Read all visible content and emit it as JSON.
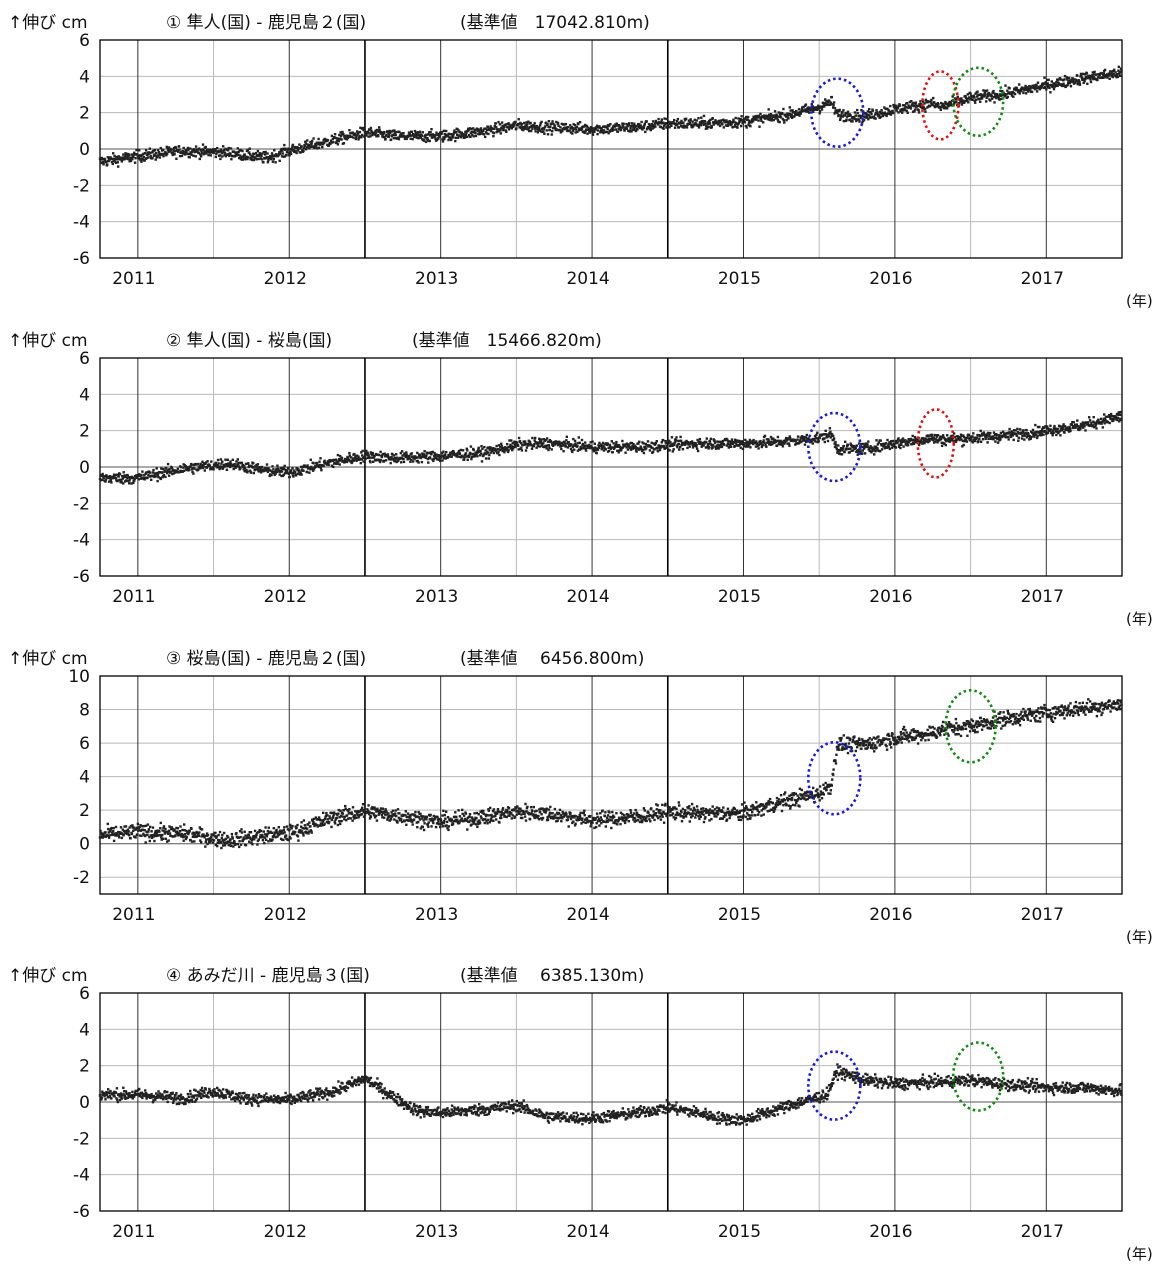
{
  "unit_label": "↑伸び cm",
  "year_unit": "(年)",
  "colors": {
    "points": "#222222",
    "blue": "#1a1ad6",
    "red": "#e01010",
    "green": "#138a13",
    "grid": "#b9b9b9",
    "axis": "#000000"
  },
  "chart_data": [
    {
      "type": "scatter",
      "title": "① 隼人(国) - 鹿児島２(国)",
      "reference": "(基準値　17042.810m)",
      "xlabel": "(年)",
      "ylabel": "↑伸び cm",
      "xlim": [
        2010.75,
        2017.5
      ],
      "ylim": [
        -6,
        6
      ],
      "yticks": [
        -6,
        -4,
        -2,
        0,
        2,
        4,
        6
      ],
      "xticks": [
        "2011",
        "2012",
        "2013",
        "2014",
        "2015",
        "2016",
        "2017"
      ],
      "grid": true,
      "series": [
        {
          "values": [
            [
              2010.75,
              -0.7
            ],
            [
              2011.0,
              -0.4
            ],
            [
              2011.3,
              -0.1
            ],
            [
              2011.6,
              -0.2
            ],
            [
              2011.85,
              -0.5
            ],
            [
              2012.0,
              -0.1
            ],
            [
              2012.3,
              0.5
            ],
            [
              2012.5,
              0.9
            ],
            [
              2012.7,
              0.7
            ],
            [
              2013.0,
              0.7
            ],
            [
              2013.3,
              1.0
            ],
            [
              2013.5,
              1.3
            ],
            [
              2013.7,
              1.2
            ],
            [
              2014.0,
              1.1
            ],
            [
              2014.3,
              1.2
            ],
            [
              2014.5,
              1.4
            ],
            [
              2014.7,
              1.4
            ],
            [
              2015.0,
              1.5
            ],
            [
              2015.3,
              1.9
            ],
            [
              2015.5,
              2.3
            ],
            [
              2015.58,
              2.6
            ],
            [
              2015.62,
              1.9
            ],
            [
              2015.8,
              1.8
            ],
            [
              2016.0,
              2.2
            ],
            [
              2016.25,
              2.5
            ],
            [
              2016.3,
              2.3
            ],
            [
              2016.5,
              2.8
            ],
            [
              2016.7,
              3.0
            ],
            [
              2017.0,
              3.5
            ],
            [
              2017.25,
              3.9
            ],
            [
              2017.5,
              4.2
            ]
          ]
        }
      ],
      "annotations": [
        {
          "shape": "ellipse",
          "color": "blue",
          "cx": 2015.62,
          "cy": 2.0
        },
        {
          "shape": "ellipse",
          "color": "red",
          "cx": 2016.3,
          "cy": 2.4
        },
        {
          "shape": "ellipse",
          "color": "green",
          "cx": 2016.55,
          "cy": 2.6
        }
      ]
    },
    {
      "type": "scatter",
      "title": "② 隼人(国) - 桜島(国)",
      "reference": "(基準値　15466.820m)",
      "xlabel": "(年)",
      "ylabel": "↑伸び cm",
      "xlim": [
        2010.75,
        2017.5
      ],
      "ylim": [
        -6,
        6
      ],
      "yticks": [
        -6,
        -4,
        -2,
        0,
        2,
        4,
        6
      ],
      "xticks": [
        "2011",
        "2012",
        "2013",
        "2014",
        "2015",
        "2016",
        "2017"
      ],
      "grid": true,
      "series": [
        {
          "values": [
            [
              2010.75,
              -0.6
            ],
            [
              2011.0,
              -0.6
            ],
            [
              2011.3,
              -0.1
            ],
            [
              2011.6,
              0.2
            ],
            [
              2011.85,
              -0.2
            ],
            [
              2012.0,
              -0.3
            ],
            [
              2012.3,
              0.3
            ],
            [
              2012.5,
              0.6
            ],
            [
              2012.7,
              0.5
            ],
            [
              2013.0,
              0.6
            ],
            [
              2013.3,
              0.8
            ],
            [
              2013.5,
              1.2
            ],
            [
              2013.7,
              1.3
            ],
            [
              2014.0,
              1.1
            ],
            [
              2014.3,
              1.1
            ],
            [
              2014.5,
              1.2
            ],
            [
              2014.7,
              1.3
            ],
            [
              2015.0,
              1.3
            ],
            [
              2015.3,
              1.4
            ],
            [
              2015.5,
              1.6
            ],
            [
              2015.58,
              1.8
            ],
            [
              2015.62,
              1.0
            ],
            [
              2015.8,
              1.0
            ],
            [
              2016.0,
              1.3
            ],
            [
              2016.25,
              1.6
            ],
            [
              2016.3,
              1.5
            ],
            [
              2016.5,
              1.6
            ],
            [
              2016.7,
              1.7
            ],
            [
              2017.0,
              2.0
            ],
            [
              2017.25,
              2.3
            ],
            [
              2017.5,
              2.8
            ]
          ]
        }
      ],
      "annotations": [
        {
          "shape": "ellipse",
          "color": "blue",
          "cx": 2015.6,
          "cy": 1.1
        },
        {
          "shape": "ellipse",
          "color": "red",
          "cx": 2016.27,
          "cy": 1.3
        }
      ]
    },
    {
      "type": "scatter",
      "title": "③ 桜島(国) - 鹿児島２(国)",
      "reference": "(基準値　 6456.800m)",
      "xlabel": "(年)",
      "ylabel": "↑伸び cm",
      "xlim": [
        2010.75,
        2017.5
      ],
      "ylim": [
        -3,
        10
      ],
      "yticks": [
        -2,
        0,
        2,
        4,
        6,
        8,
        10
      ],
      "xticks": [
        "2011",
        "2012",
        "2013",
        "2014",
        "2015",
        "2016",
        "2017"
      ],
      "grid": true,
      "series": [
        {
          "values": [
            [
              2010.75,
              0.5
            ],
            [
              2011.0,
              0.7
            ],
            [
              2011.3,
              0.6
            ],
            [
              2011.6,
              0.2
            ],
            [
              2011.85,
              0.5
            ],
            [
              2012.0,
              0.6
            ],
            [
              2012.3,
              1.6
            ],
            [
              2012.5,
              1.9
            ],
            [
              2012.7,
              1.7
            ],
            [
              2013.0,
              1.3
            ],
            [
              2013.3,
              1.6
            ],
            [
              2013.5,
              1.9
            ],
            [
              2013.7,
              1.8
            ],
            [
              2014.0,
              1.4
            ],
            [
              2014.3,
              1.6
            ],
            [
              2014.5,
              1.9
            ],
            [
              2014.7,
              1.8
            ],
            [
              2015.0,
              1.8
            ],
            [
              2015.3,
              2.6
            ],
            [
              2015.5,
              3.0
            ],
            [
              2015.58,
              3.5
            ],
            [
              2015.62,
              5.9
            ],
            [
              2015.8,
              5.9
            ],
            [
              2016.0,
              6.3
            ],
            [
              2016.25,
              6.6
            ],
            [
              2016.3,
              6.8
            ],
            [
              2016.5,
              7.0
            ],
            [
              2016.7,
              7.4
            ],
            [
              2017.0,
              7.8
            ],
            [
              2017.25,
              8.1
            ],
            [
              2017.5,
              8.3
            ]
          ]
        }
      ],
      "annotations": [
        {
          "shape": "ellipse",
          "color": "blue",
          "cx": 2015.6,
          "cy": 3.9
        },
        {
          "shape": "ellipse",
          "color": "green",
          "cx": 2016.5,
          "cy": 7.0
        }
      ]
    },
    {
      "type": "scatter",
      "title": "④ あみだ川 - 鹿児島３(国)",
      "reference": "(基準値　 6385.130m)",
      "xlabel": "(年)",
      "ylabel": "↑伸び cm",
      "xlim": [
        2010.75,
        2017.5
      ],
      "ylim": [
        -6,
        6
      ],
      "yticks": [
        -6,
        -4,
        -2,
        0,
        2,
        4,
        6
      ],
      "xticks": [
        "2011",
        "2012",
        "2013",
        "2014",
        "2015",
        "2016",
        "2017"
      ],
      "grid": true,
      "series": [
        {
          "values": [
            [
              2010.75,
              0.4
            ],
            [
              2011.0,
              0.4
            ],
            [
              2011.3,
              0.2
            ],
            [
              2011.5,
              0.6
            ],
            [
              2011.7,
              0.2
            ],
            [
              2012.0,
              0.1
            ],
            [
              2012.3,
              0.6
            ],
            [
              2012.5,
              1.3
            ],
            [
              2012.7,
              0.2
            ],
            [
              2012.85,
              -0.5
            ],
            [
              2013.0,
              -0.6
            ],
            [
              2013.3,
              -0.4
            ],
            [
              2013.5,
              -0.2
            ],
            [
              2013.7,
              -0.8
            ],
            [
              2014.0,
              -0.9
            ],
            [
              2014.3,
              -0.6
            ],
            [
              2014.5,
              -0.3
            ],
            [
              2014.7,
              -0.6
            ],
            [
              2014.85,
              -0.9
            ],
            [
              2015.0,
              -1.0
            ],
            [
              2015.3,
              -0.2
            ],
            [
              2015.55,
              0.4
            ],
            [
              2015.62,
              1.7
            ],
            [
              2015.8,
              1.2
            ],
            [
              2016.0,
              1.0
            ],
            [
              2016.3,
              1.1
            ],
            [
              2016.5,
              1.2
            ],
            [
              2016.7,
              1.0
            ],
            [
              2017.0,
              0.8
            ],
            [
              2017.25,
              0.8
            ],
            [
              2017.5,
              0.6
            ]
          ]
        }
      ],
      "annotations": [
        {
          "shape": "ellipse",
          "color": "blue",
          "cx": 2015.6,
          "cy": 0.9
        },
        {
          "shape": "ellipse",
          "color": "green",
          "cx": 2016.55,
          "cy": 1.4
        }
      ]
    }
  ]
}
